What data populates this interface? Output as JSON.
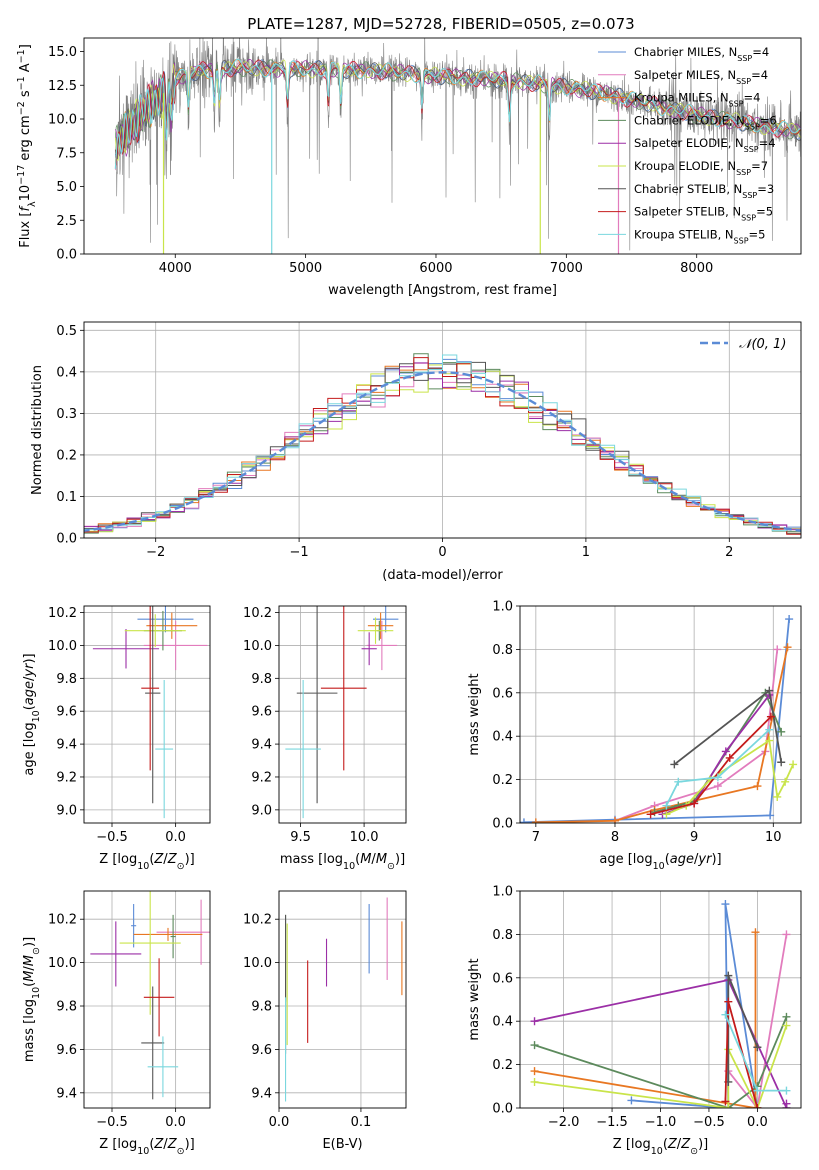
{
  "figure": {
    "title": "PLATE=1287, MJD=52728, FIBERID=0505, z=0.073"
  },
  "colors": {
    "chabrier_miles": "#5b8bd6",
    "salpeter_miles": "#e27cbd",
    "kroupa_miles": "#e87722",
    "chabrier_elodie": "#5c8a5c",
    "salpeter_elodie": "#9b2fa6",
    "kroupa_elodie": "#c9e44a",
    "chabrier_stelib": "#555555",
    "salpeter_stelib": "#c41b1b",
    "kroupa_stelib": "#7ad7de",
    "data": "#808080",
    "normal": "#5b8bd6"
  },
  "legend_spectrum": [
    {
      "key": "chabrier_miles",
      "base": "Chabrier MILES, N",
      "sub": "SSP",
      "tail": "=4"
    },
    {
      "key": "salpeter_miles",
      "base": "Salpeter MILES, N",
      "sub": "SSP",
      "tail": "=4"
    },
    {
      "key": "kroupa_miles",
      "base": "Kroupa MILES, N",
      "sub": "SSP",
      "tail": "=4"
    },
    {
      "key": "chabrier_elodie",
      "base": "Chabrier ELODIE, N",
      "sub": "SSP",
      "tail": "=6"
    },
    {
      "key": "salpeter_elodie",
      "base": "Salpeter ELODIE, N",
      "sub": "SSP",
      "tail": "=4"
    },
    {
      "key": "kroupa_elodie",
      "base": "Kroupa ELODIE, N",
      "sub": "SSP",
      "tail": "=7"
    },
    {
      "key": "chabrier_stelib",
      "base": "Chabrier STELIB, N",
      "sub": "SSP",
      "tail": "=3"
    },
    {
      "key": "salpeter_stelib",
      "base": "Salpeter STELIB, N",
      "sub": "SSP",
      "tail": "=5"
    },
    {
      "key": "kroupa_stelib",
      "base": "Kroupa STELIB, N",
      "sub": "SSP",
      "tail": "=5"
    }
  ],
  "chart_data": [
    {
      "id": "spectrum",
      "type": "line",
      "xlabel": "wavelength [Angstrom, rest frame]",
      "ylabel": "Flux [f_λ 10^-17 erg cm^-2 s^-1 A^-1]",
      "xlim": [
        3300,
        8800
      ],
      "ylim": [
        0,
        16
      ],
      "xticks": [
        4000,
        5000,
        6000,
        7000,
        8000
      ],
      "yticks": [
        0.0,
        2.5,
        5.0,
        7.5,
        10.0,
        12.5,
        15.0
      ],
      "continuum": {
        "x": [
          3540,
          3600,
          3700,
          3800,
          3900,
          4000,
          4200,
          4500,
          5000,
          5500,
          6000,
          6500,
          7000,
          7300,
          7600,
          8000,
          8500,
          8800
        ],
        "y": [
          7.8,
          8.8,
          9.8,
          11.0,
          11.8,
          13.0,
          13.6,
          13.8,
          13.7,
          13.6,
          13.2,
          12.9,
          12.4,
          11.9,
          11.2,
          10.3,
          9.5,
          9.0
        ]
      },
      "spikes": [
        {
          "series": "kroupa_elodie",
          "x": 3910
        },
        {
          "series": "kroupa_stelib",
          "x": 4740
        },
        {
          "series": "kroupa_elodie",
          "x": 6800
        },
        {
          "series": "salpeter_miles",
          "x": 7400
        }
      ],
      "series": [
        "chabrier_miles",
        "salpeter_miles",
        "kroupa_miles",
        "chabrier_elodie",
        "salpeter_elodie",
        "kroupa_elodie",
        "chabrier_stelib",
        "salpeter_stelib",
        "kroupa_stelib"
      ]
    },
    {
      "id": "residuals",
      "type": "histogram",
      "xlabel": "(data-model)/error",
      "ylabel": "Normed distribution",
      "xlim": [
        -2.5,
        2.5
      ],
      "ylim": [
        0,
        0.52
      ],
      "xticks": [
        -2,
        -1,
        0,
        1,
        2
      ],
      "yticks": [
        0.0,
        0.1,
        0.2,
        0.3,
        0.4,
        0.5
      ],
      "bin_start": -2.6,
      "bin_width": 0.1,
      "normal_label": "𝒩(0, 1)",
      "normal_mean": 0,
      "normal_sigma": 1
    },
    {
      "id": "age_vs_Z",
      "type": "errorbar",
      "xlabel": "Z [log10(Z/Z⊙)]",
      "ylabel": "age [log10(age/yr)]",
      "xlim": [
        -0.72,
        0.27
      ],
      "ylim": [
        8.92,
        10.24
      ],
      "xticks": [
        -0.5,
        0.0
      ],
      "yticks": [
        9.0,
        9.2,
        9.4,
        9.6,
        9.8,
        10.0,
        10.2
      ],
      "points": [
        {
          "s": "chabrier_miles",
          "x": -0.08,
          "y": 10.16,
          "xe": 0.22,
          "ye": 0.08
        },
        {
          "s": "salpeter_miles",
          "x": 0.0,
          "y": 10.0,
          "xe": 0.25,
          "ye": 0.15
        },
        {
          "s": "kroupa_miles",
          "x": -0.03,
          "y": 10.12,
          "xe": 0.2,
          "ye": 0.08
        },
        {
          "s": "chabrier_elodie",
          "x": -0.1,
          "y": 10.09,
          "xe": 0.15,
          "ye": 0.12
        },
        {
          "s": "salpeter_elodie",
          "x": -0.39,
          "y": 9.98,
          "xe": 0.26,
          "ye": 0.12
        },
        {
          "s": "kroupa_elodie",
          "x": -0.16,
          "y": 10.09,
          "xe": 0.24,
          "ye": 0.1
        },
        {
          "s": "chabrier_stelib",
          "x": -0.18,
          "y": 9.71,
          "xe": 0.06,
          "ye": 0.67
        },
        {
          "s": "salpeter_stelib",
          "x": -0.2,
          "y": 9.74,
          "xe": 0.07,
          "ye": 0.5
        },
        {
          "s": "kroupa_stelib",
          "x": -0.09,
          "y": 9.37,
          "xe": 0.07,
          "ye": 0.42
        }
      ]
    },
    {
      "id": "age_vs_mass",
      "type": "errorbar",
      "xlabel": "mass [log10(M/M⊙)]",
      "xlim": [
        9.33,
        10.33
      ],
      "ylim": [
        8.92,
        10.24
      ],
      "xticks": [
        9.5,
        10.0
      ],
      "yticks": [
        9.0,
        9.2,
        9.4,
        9.6,
        9.8,
        10.0,
        10.2
      ],
      "points": [
        {
          "s": "chabrier_miles",
          "x": 10.17,
          "y": 10.16,
          "xe": 0.1,
          "ye": 0.08
        },
        {
          "s": "salpeter_miles",
          "x": 10.14,
          "y": 10.0,
          "xe": 0.12,
          "ye": 0.15
        },
        {
          "s": "kroupa_miles",
          "x": 10.13,
          "y": 10.12,
          "xe": 0.1,
          "ye": 0.08
        },
        {
          "s": "chabrier_elodie",
          "x": 10.12,
          "y": 10.09,
          "xe": 0.02,
          "ye": 0.06
        },
        {
          "s": "salpeter_elodie",
          "x": 10.04,
          "y": 9.98,
          "xe": 0.06,
          "ye": 0.1
        },
        {
          "s": "kroupa_elodie",
          "x": 10.09,
          "y": 10.09,
          "xe": 0.14,
          "ye": 0.08
        },
        {
          "s": "chabrier_stelib",
          "x": 9.63,
          "y": 9.71,
          "xe": 0.16,
          "ye": 0.67
        },
        {
          "s": "salpeter_stelib",
          "x": 9.84,
          "y": 9.74,
          "xe": 0.18,
          "ye": 0.5
        },
        {
          "s": "kroupa_stelib",
          "x": 9.52,
          "y": 9.37,
          "xe": 0.14,
          "ye": 0.42
        }
      ]
    },
    {
      "id": "weight_vs_age",
      "type": "line",
      "xlabel": "age [log10(age/yr)]",
      "ylabel": "mass weight",
      "xlim": [
        6.8,
        10.35
      ],
      "ylim": [
        0,
        1.0
      ],
      "xticks": [
        7,
        8,
        9,
        10
      ],
      "yticks": [
        0.0,
        0.2,
        0.4,
        0.6,
        0.8,
        1.0
      ],
      "series": [
        {
          "s": "chabrier_miles",
          "x": [
            6.85,
            8.0,
            9.96,
            10.2
          ],
          "y": [
            0.003,
            0.015,
            0.035,
            0.94
          ]
        },
        {
          "s": "salpeter_miles",
          "x": [
            8.0,
            8.5,
            9.3,
            9.9,
            10.05
          ],
          "y": [
            0.01,
            0.08,
            0.17,
            0.33,
            0.8
          ]
        },
        {
          "s": "kroupa_miles",
          "x": [
            7.0,
            8.0,
            8.5,
            9.8,
            10.18
          ],
          "y": [
            0.003,
            0.01,
            0.06,
            0.17,
            0.81
          ]
        },
        {
          "s": "chabrier_elodie",
          "x": [
            8.5,
            8.8,
            9.0,
            9.9,
            10.1
          ],
          "y": [
            0.05,
            0.08,
            0.1,
            0.6,
            0.42
          ]
        },
        {
          "s": "salpeter_elodie",
          "x": [
            8.6,
            9.0,
            9.4,
            9.95
          ],
          "y": [
            0.04,
            0.09,
            0.33,
            0.59
          ]
        },
        {
          "s": "kroupa_elodie",
          "x": [
            8.65,
            8.9,
            9.2,
            9.95,
            10.05,
            10.15,
            10.25
          ],
          "y": [
            0.04,
            0.08,
            0.2,
            0.38,
            0.12,
            0.19,
            0.27
          ]
        },
        {
          "s": "chabrier_stelib",
          "x": [
            8.75,
            9.95,
            10.1
          ],
          "y": [
            0.27,
            0.61,
            0.28
          ]
        },
        {
          "s": "salpeter_stelib",
          "x": [
            8.45,
            9.0,
            9.45,
            9.97
          ],
          "y": [
            0.04,
            0.09,
            0.3,
            0.49
          ]
        },
        {
          "s": "kroupa_stelib",
          "x": [
            8.65,
            8.8,
            9.3,
            9.95
          ],
          "y": [
            0.08,
            0.19,
            0.21,
            0.43
          ]
        }
      ]
    },
    {
      "id": "mass_vs_Z",
      "type": "errorbar",
      "xlabel": "Z [log10(Z/Z⊙)]",
      "ylabel": "mass [log10(M/M⊙)]",
      "xlim": [
        -0.72,
        0.27
      ],
      "ylim": [
        9.33,
        10.33
      ],
      "xticks": [
        -0.5,
        0.0
      ],
      "yticks": [
        9.4,
        9.6,
        9.8,
        10.0,
        10.2
      ],
      "points": [
        {
          "s": "chabrier_miles",
          "x": -0.33,
          "y": 10.17,
          "xe": 0.02,
          "ye": 0.1
        },
        {
          "s": "salpeter_miles",
          "x": 0.2,
          "y": 10.14,
          "xe": 0.35,
          "ye": 0.15
        },
        {
          "s": "kroupa_miles",
          "x": -0.06,
          "y": 10.13,
          "xe": 0.27,
          "ye": 0.03
        },
        {
          "s": "chabrier_elodie",
          "x": -0.02,
          "y": 10.12,
          "xe": 0.02,
          "ye": 0.1
        },
        {
          "s": "salpeter_elodie",
          "x": -0.47,
          "y": 10.04,
          "xe": 0.2,
          "ye": 0.15
        },
        {
          "s": "kroupa_elodie",
          "x": -0.2,
          "y": 10.09,
          "xe": 0.24,
          "ye": 0.33
        },
        {
          "s": "chabrier_stelib",
          "x": -0.18,
          "y": 9.63,
          "xe": 0.09,
          "ye": 0.26
        },
        {
          "s": "salpeter_stelib",
          "x": -0.13,
          "y": 9.84,
          "xe": 0.12,
          "ye": 0.18
        },
        {
          "s": "kroupa_stelib",
          "x": -0.1,
          "y": 9.52,
          "xe": 0.12,
          "ye": 0.14
        }
      ]
    },
    {
      "id": "mass_vs_EBV",
      "type": "errorbar",
      "xlabel": "E(B-V)",
      "xlim": [
        0.0,
        0.155
      ],
      "ylim": [
        9.33,
        10.33
      ],
      "xticks": [
        0.0,
        0.1
      ],
      "yticks": [
        9.4,
        9.6,
        9.8,
        10.0,
        10.2
      ],
      "points": [
        {
          "s": "chabrier_miles",
          "x": 0.11,
          "y": 10.11,
          "xe": 0,
          "ye": 0.16
        },
        {
          "s": "salpeter_miles",
          "x": 0.132,
          "y": 10.11,
          "xe": 0,
          "ye": 0.19
        },
        {
          "s": "kroupa_miles",
          "x": 0.15,
          "y": 10.02,
          "xe": 0,
          "ye": 0.17
        },
        {
          "s": "chabrier_elodie",
          "x": 0.008,
          "y": 10.02,
          "xe": 0,
          "ye": 0.2
        },
        {
          "s": "salpeter_elodie",
          "x": 0.058,
          "y": 10.0,
          "xe": 0,
          "ye": 0.11
        },
        {
          "s": "kroupa_elodie",
          "x": 0.01,
          "y": 9.9,
          "xe": 0,
          "ye": 0.28
        },
        {
          "s": "chabrier_stelib",
          "x": 0.008,
          "y": 9.9,
          "xe": 0,
          "ye": 0.32
        },
        {
          "s": "salpeter_stelib",
          "x": 0.035,
          "y": 9.82,
          "xe": 0,
          "ye": 0.19
        },
        {
          "s": "kroupa_stelib",
          "x": 0.008,
          "y": 9.6,
          "xe": 0,
          "ye": 0.24
        }
      ]
    },
    {
      "id": "weight_vs_Z",
      "type": "line",
      "xlabel": "Z [log10(Z/Z⊙)]",
      "ylabel": "mass weight",
      "xlim": [
        -2.45,
        0.45
      ],
      "ylim": [
        0,
        1.0
      ],
      "xticks": [
        -2.0,
        -1.5,
        -1.0,
        -0.5,
        0.0
      ],
      "yticks": [
        0.0,
        0.2,
        0.4,
        0.6,
        0.8,
        1.0
      ],
      "series": [
        {
          "s": "chabrier_miles",
          "x": [
            -1.3,
            -0.3,
            -0.33,
            0.0
          ],
          "y": [
            0.035,
            0.0,
            0.94,
            0.0
          ]
        },
        {
          "s": "salpeter_miles",
          "x": [
            -0.3,
            0.0,
            0.3
          ],
          "y": [
            0.17,
            0.0,
            0.8
          ]
        },
        {
          "s": "kroupa_miles",
          "x": [
            -2.3,
            -0.02,
            -0.02
          ],
          "y": [
            0.17,
            0.0,
            0.81
          ]
        },
        {
          "s": "chabrier_elodie",
          "x": [
            -2.3,
            -0.3,
            0.0,
            0.3
          ],
          "y": [
            0.29,
            0.0,
            0.1,
            0.42
          ]
        },
        {
          "s": "salpeter_elodie",
          "x": [
            -2.3,
            -0.3,
            0.3,
            0.3
          ],
          "y": [
            0.4,
            0.59,
            0.0,
            0.02
          ]
        },
        {
          "s": "kroupa_elodie",
          "x": [
            -2.3,
            -0.3,
            -0.3,
            0.0,
            0.3
          ],
          "y": [
            0.12,
            0.0,
            0.27,
            0.0,
            0.38
          ]
        },
        {
          "s": "chabrier_stelib",
          "x": [
            -0.3,
            -0.3,
            0.0
          ],
          "y": [
            0.12,
            0.61,
            0.28
          ]
        },
        {
          "s": "salpeter_stelib",
          "x": [
            -0.33,
            -0.3,
            0.0
          ],
          "y": [
            0.03,
            0.49,
            0.0
          ]
        },
        {
          "s": "kroupa_stelib",
          "x": [
            -0.33,
            0.0,
            0.3
          ],
          "y": [
            0.43,
            0.08,
            0.08
          ]
        }
      ]
    }
  ]
}
